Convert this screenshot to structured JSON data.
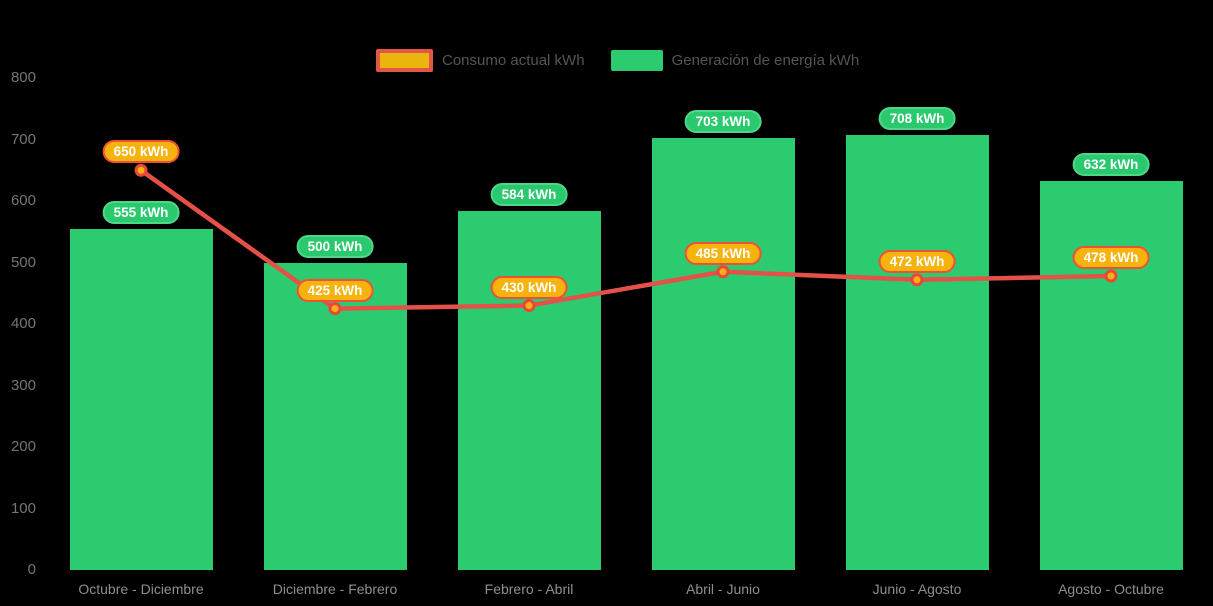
{
  "chart_data": {
    "type": "bar+line",
    "title": "",
    "categories": [
      "Octubre - Diciembre",
      "Diciembre - Febrero",
      "Febrero - Abril",
      "Abril - Junio",
      "Junio - Agosto",
      "Agosto - Octubre"
    ],
    "series": [
      {
        "name": "Consumo actual kWh",
        "type": "line",
        "values": [
          650,
          425,
          430,
          485,
          472,
          478
        ],
        "color": "#E35149",
        "marker_fill": "#F7B30D",
        "marker_border": "#E8473B"
      },
      {
        "name": "Generación de energía kWh",
        "type": "bar",
        "values": [
          555,
          500,
          584,
          703,
          708,
          632
        ],
        "color": "#2DCB70"
      }
    ],
    "data_labels": {
      "bar": [
        "555 kWh",
        "500 kWh",
        "584 kWh",
        "703 kWh",
        "708 kWh",
        "632 kWh"
      ],
      "line": [
        "650 kWh",
        "425 kWh",
        "430 kWh",
        "485 kWh",
        "472 kWh",
        "478 kWh"
      ]
    },
    "value_suffix": " kWh",
    "ylim": [
      0,
      800
    ],
    "yticks": [
      0,
      100,
      200,
      300,
      400,
      500,
      600,
      700,
      800
    ],
    "grid": false,
    "axes_lines": false,
    "legend_position": "top-center",
    "background_color": "#000000",
    "axis_text_color": "#808080",
    "label_text_color": "#FFFFFF"
  }
}
